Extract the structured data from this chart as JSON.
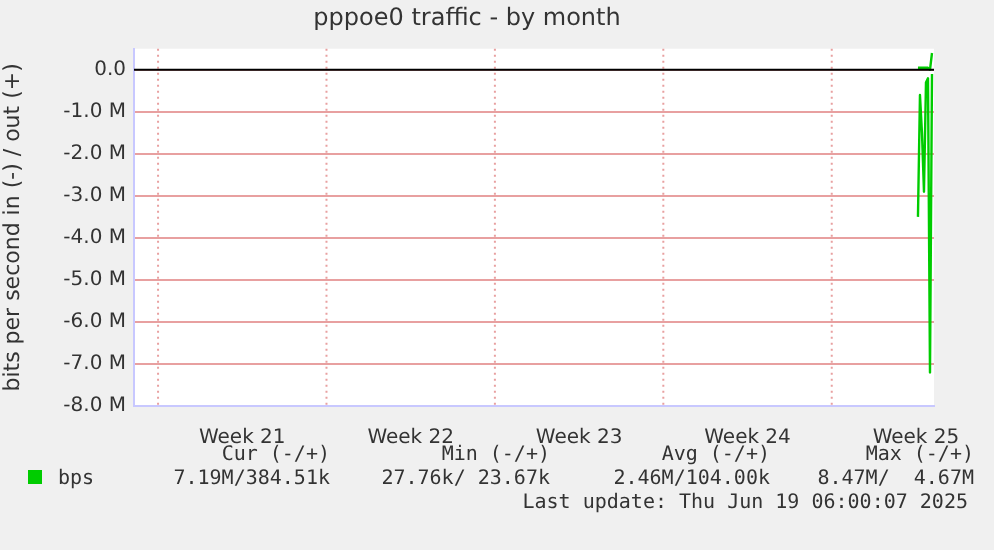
{
  "chart_data": {
    "type": "line",
    "title": "pppoe0 traffic - by month",
    "ylabel": "bits per second in (-) / out (+)",
    "categories": [
      null,
      null,
      null,
      null,
      null,
      null,
      null,
      null,
      null,
      null,
      null,
      null,
      null,
      null,
      null,
      null,
      null,
      null,
      null,
      null,
      null,
      null,
      null,
      null,
      null,
      null,
      null,
      null,
      null,
      null,
      null,
      null,
      null,
      null,
      null,
      null,
      null,
      null,
      null,
      null,
      null,
      null,
      null,
      null,
      null,
      null,
      null,
      null,
      null,
      null,
      null,
      null,
      null,
      null,
      "Week 21",
      null,
      null,
      null,
      null,
      null,
      null,
      null,
      null,
      null,
      null,
      null,
      null,
      null,
      null,
      null,
      null,
      null,
      null,
      null,
      null,
      null,
      null,
      null,
      null,
      null,
      null,
      null,
      null,
      null,
      null,
      null,
      null,
      null,
      null,
      null,
      null,
      null,
      null,
      null,
      null,
      null,
      null,
      null,
      null,
      null,
      null,
      null,
      null,
      null,
      null,
      null,
      null,
      null,
      null,
      null,
      null,
      null,
      null,
      null,
      null,
      null,
      null,
      null,
      null,
      null,
      null,
      null,
      null,
      null,
      null,
      null,
      null,
      null,
      null,
      null,
      null,
      null,
      null,
      null,
      null,
      null,
      null,
      null,
      "Week 22",
      null,
      null,
      null,
      null,
      null,
      null,
      null,
      null,
      null,
      null,
      null,
      null,
      null,
      null,
      null,
      null,
      null,
      null,
      null,
      null,
      null,
      null,
      null,
      null,
      null,
      null,
      null,
      null,
      null,
      null,
      null,
      null,
      null,
      null,
      null,
      null,
      null,
      null,
      null,
      null,
      null,
      null,
      null,
      null,
      null,
      null,
      null,
      null,
      null,
      null,
      null,
      null,
      null,
      null,
      null,
      null,
      null,
      null,
      null,
      null,
      null,
      null,
      null,
      null,
      null,
      null,
      null,
      null,
      null,
      null,
      null,
      null,
      null,
      null,
      null,
      null,
      null,
      null,
      null,
      null,
      null,
      null,
      null,
      "Week 23",
      null,
      null,
      null,
      null,
      null,
      null,
      null,
      null,
      null,
      null,
      null,
      null,
      null,
      null,
      null,
      null,
      null,
      null,
      null,
      null,
      null,
      null,
      null,
      null,
      null,
      null,
      null,
      null,
      null,
      null,
      null,
      null,
      null,
      null,
      null,
      null,
      null,
      null,
      null,
      null,
      null,
      null,
      null,
      null,
      null,
      null,
      null,
      null,
      null,
      null,
      null,
      null,
      null,
      null,
      null,
      null,
      null,
      null,
      null,
      null,
      null,
      null,
      null,
      null,
      null,
      null,
      null,
      null,
      null,
      null,
      null,
      null,
      null,
      null,
      null,
      null,
      null,
      null,
      null,
      null,
      null,
      null,
      null,
      "Week 24",
      null,
      null,
      null,
      null,
      null,
      null,
      null,
      null,
      null,
      null,
      null,
      null,
      null,
      null,
      null,
      null,
      null,
      null,
      null,
      null,
      null,
      null,
      null,
      null,
      null,
      null,
      null,
      null,
      null,
      null,
      null,
      null,
      null,
      null,
      null,
      null,
      null,
      null,
      null,
      null,
      null,
      null,
      null,
      null,
      null,
      null,
      null,
      null,
      null,
      null,
      null,
      null,
      null,
      null,
      null,
      null,
      null,
      null,
      null,
      null,
      null,
      null,
      null,
      null,
      null,
      null,
      null,
      null,
      null,
      null,
      null,
      null,
      null,
      null,
      null,
      null,
      null,
      null,
      null,
      null,
      null,
      null,
      null,
      "Week 25",
      null,
      null,
      null,
      null,
      null,
      null,
      null,
      null,
      null
    ],
    "ylim": [
      -8,
      0.5
    ],
    "yticks": [
      {
        "value": 0,
        "label": "0.0"
      },
      {
        "value": -1,
        "label": "-1.0 M"
      },
      {
        "value": -2,
        "label": "-2.0 M"
      },
      {
        "value": -3,
        "label": "-3.0 M"
      },
      {
        "value": -4,
        "label": "-4.0 M"
      },
      {
        "value": -5,
        "label": "-5.0 M"
      },
      {
        "value": -6,
        "label": "-6.0 M"
      },
      {
        "value": -7,
        "label": "-7.0 M"
      },
      {
        "value": -8,
        "label": "-8.0 M"
      }
    ],
    "grid": true,
    "legend": "bottom",
    "marker": "none",
    "line_style": "solid",
    "ref_lines": [
      {
        "axis": "y",
        "value": 0,
        "color": "#000000"
      }
    ],
    "series": [
      {
        "name": "bps",
        "color": "#00cc00",
        "values": [
          null,
          null,
          null,
          null,
          null,
          null,
          null,
          null,
          null,
          null,
          null,
          null,
          null,
          null,
          null,
          null,
          null,
          null,
          null,
          null,
          null,
          null,
          null,
          null,
          null,
          null,
          null,
          null,
          null,
          null,
          null,
          null,
          null,
          null,
          null,
          null,
          null,
          null,
          null,
          null,
          null,
          null,
          null,
          null,
          null,
          null,
          null,
          null,
          null,
          null,
          null,
          null,
          null,
          null,
          null,
          null,
          null,
          null,
          null,
          null,
          null,
          null,
          null,
          null,
          null,
          null,
          null,
          null,
          null,
          null,
          null,
          null,
          null,
          null,
          null,
          null,
          null,
          null,
          null,
          null,
          null,
          null,
          null,
          null,
          null,
          null,
          null,
          null,
          null,
          null,
          null,
          null,
          null,
          null,
          null,
          null,
          null,
          null,
          null,
          null,
          null,
          null,
          null,
          null,
          null,
          null,
          null,
          null,
          null,
          null,
          null,
          null,
          null,
          null,
          null,
          null,
          null,
          null,
          null,
          null,
          null,
          null,
          null,
          null,
          null,
          null,
          null,
          null,
          null,
          null,
          null,
          null,
          null,
          null,
          null,
          null,
          null,
          null,
          null,
          null,
          null,
          null,
          null,
          null,
          null,
          null,
          null,
          null,
          null,
          null,
          null,
          null,
          null,
          null,
          null,
          null,
          null,
          null,
          null,
          null,
          null,
          null,
          null,
          null,
          null,
          null,
          null,
          null,
          null,
          null,
          null,
          null,
          null,
          null,
          null,
          null,
          null,
          null,
          null,
          null,
          null,
          null,
          null,
          null,
          null,
          null,
          null,
          null,
          null,
          null,
          null,
          null,
          null,
          null,
          null,
          null,
          null,
          null,
          null,
          null,
          null,
          null,
          null,
          null,
          null,
          null,
          null,
          null,
          null,
          null,
          null,
          null,
          null,
          null,
          null,
          null,
          null,
          null,
          null,
          null,
          null,
          null,
          null,
          null,
          null,
          null,
          null,
          null,
          null,
          null,
          null,
          null,
          null,
          null,
          null,
          null,
          null,
          null,
          null,
          null,
          null,
          null,
          null,
          null,
          null,
          null,
          null,
          null,
          null,
          null,
          null,
          null,
          null,
          null,
          null,
          null,
          null,
          null,
          null,
          null,
          null,
          null,
          null,
          null,
          null,
          null,
          null,
          null,
          null,
          null,
          null,
          null,
          null,
          null,
          null,
          null,
          null,
          null,
          null,
          null,
          null,
          null,
          null,
          null,
          null,
          null,
          null,
          null,
          null,
          null,
          null,
          null,
          null,
          null,
          null,
          null,
          null,
          null,
          null,
          null,
          null,
          null,
          null,
          null,
          null,
          null,
          null,
          null,
          null,
          null,
          null,
          null,
          null,
          null,
          null,
          null,
          null,
          null,
          null,
          null,
          null,
          null,
          null,
          null,
          null,
          null,
          null,
          null,
          null,
          null,
          null,
          null,
          null,
          null,
          null,
          null,
          null,
          null,
          null,
          null,
          null,
          null,
          null,
          null,
          null,
          null,
          null,
          null,
          null,
          null,
          null,
          null,
          null,
          null,
          null,
          null,
          null,
          null,
          null,
          null,
          null,
          null,
          null,
          null,
          null,
          null,
          null,
          null,
          null,
          null,
          null,
          null,
          null,
          null,
          null,
          null,
          null,
          null,
          null,
          null,
          null,
          null,
          null,
          null,
          null,
          null,
          null,
          null,
          null,
          null,
          null,
          -3.5,
          -0.6,
          -1.5,
          -2.9,
          -0.3,
          -0.2,
          -7.2,
          -0.1,
          null
        ]
      },
      {
        "color": "#00cc00",
        "values": [
          null,
          null,
          null,
          null,
          null,
          null,
          null,
          null,
          null,
          null,
          null,
          null,
          null,
          null,
          null,
          null,
          null,
          null,
          null,
          null,
          null,
          null,
          null,
          null,
          null,
          null,
          null,
          null,
          null,
          null,
          null,
          null,
          null,
          null,
          null,
          null,
          null,
          null,
          null,
          null,
          null,
          null,
          null,
          null,
          null,
          null,
          null,
          null,
          null,
          null,
          null,
          null,
          null,
          null,
          null,
          null,
          null,
          null,
          null,
          null,
          null,
          null,
          null,
          null,
          null,
          null,
          null,
          null,
          null,
          null,
          null,
          null,
          null,
          null,
          null,
          null,
          null,
          null,
          null,
          null,
          null,
          null,
          null,
          null,
          null,
          null,
          null,
          null,
          null,
          null,
          null,
          null,
          null,
          null,
          null,
          null,
          null,
          null,
          null,
          null,
          null,
          null,
          null,
          null,
          null,
          null,
          null,
          null,
          null,
          null,
          null,
          null,
          null,
          null,
          null,
          null,
          null,
          null,
          null,
          null,
          null,
          null,
          null,
          null,
          null,
          null,
          null,
          null,
          null,
          null,
          null,
          null,
          null,
          null,
          null,
          null,
          null,
          null,
          null,
          null,
          null,
          null,
          null,
          null,
          null,
          null,
          null,
          null,
          null,
          null,
          null,
          null,
          null,
          null,
          null,
          null,
          null,
          null,
          null,
          null,
          null,
          null,
          null,
          null,
          null,
          null,
          null,
          null,
          null,
          null,
          null,
          null,
          null,
          null,
          null,
          null,
          null,
          null,
          null,
          null,
          null,
          null,
          null,
          null,
          null,
          null,
          null,
          null,
          null,
          null,
          null,
          null,
          null,
          null,
          null,
          null,
          null,
          null,
          null,
          null,
          null,
          null,
          null,
          null,
          null,
          null,
          null,
          null,
          null,
          null,
          null,
          null,
          null,
          null,
          null,
          null,
          null,
          null,
          null,
          null,
          null,
          null,
          null,
          null,
          null,
          null,
          null,
          null,
          null,
          null,
          null,
          null,
          null,
          null,
          null,
          null,
          null,
          null,
          null,
          null,
          null,
          null,
          null,
          null,
          null,
          null,
          null,
          null,
          null,
          null,
          null,
          null,
          null,
          null,
          null,
          null,
          null,
          null,
          null,
          null,
          null,
          null,
          null,
          null,
          null,
          null,
          null,
          null,
          null,
          null,
          null,
          null,
          null,
          null,
          null,
          null,
          null,
          null,
          null,
          null,
          null,
          null,
          null,
          null,
          null,
          null,
          null,
          null,
          null,
          null,
          null,
          null,
          null,
          null,
          null,
          null,
          null,
          null,
          null,
          null,
          null,
          null,
          null,
          null,
          null,
          null,
          null,
          null,
          null,
          null,
          null,
          null,
          null,
          null,
          null,
          null,
          null,
          null,
          null,
          null,
          null,
          null,
          null,
          null,
          null,
          null,
          null,
          null,
          null,
          null,
          null,
          null,
          null,
          null,
          null,
          null,
          null,
          null,
          null,
          null,
          null,
          null,
          null,
          null,
          null,
          null,
          null,
          null,
          null,
          null,
          null,
          null,
          null,
          null,
          null,
          null,
          null,
          null,
          null,
          null,
          null,
          null,
          null,
          null,
          null,
          null,
          null,
          null,
          null,
          null,
          null,
          null,
          null,
          null,
          null,
          null,
          null,
          null,
          null,
          null,
          null,
          null,
          null,
          null,
          null,
          null,
          null,
          null,
          null,
          null,
          null,
          0.05,
          0.05,
          0.05,
          0.05,
          0.05,
          0.05,
          0.0,
          0.4,
          null
        ]
      }
    ],
    "annotations": [
      "Cur (-/+)",
      "Min (-/+)",
      "Avg (-/+)",
      "Max (-/+)",
      "7.19M/384.51k",
      "27.76k/ 23.67k",
      "2.46M/104.00k",
      "8.47M/  4.67M",
      "Last update: Thu Jun 19 06:00:07 2025"
    ]
  }
}
